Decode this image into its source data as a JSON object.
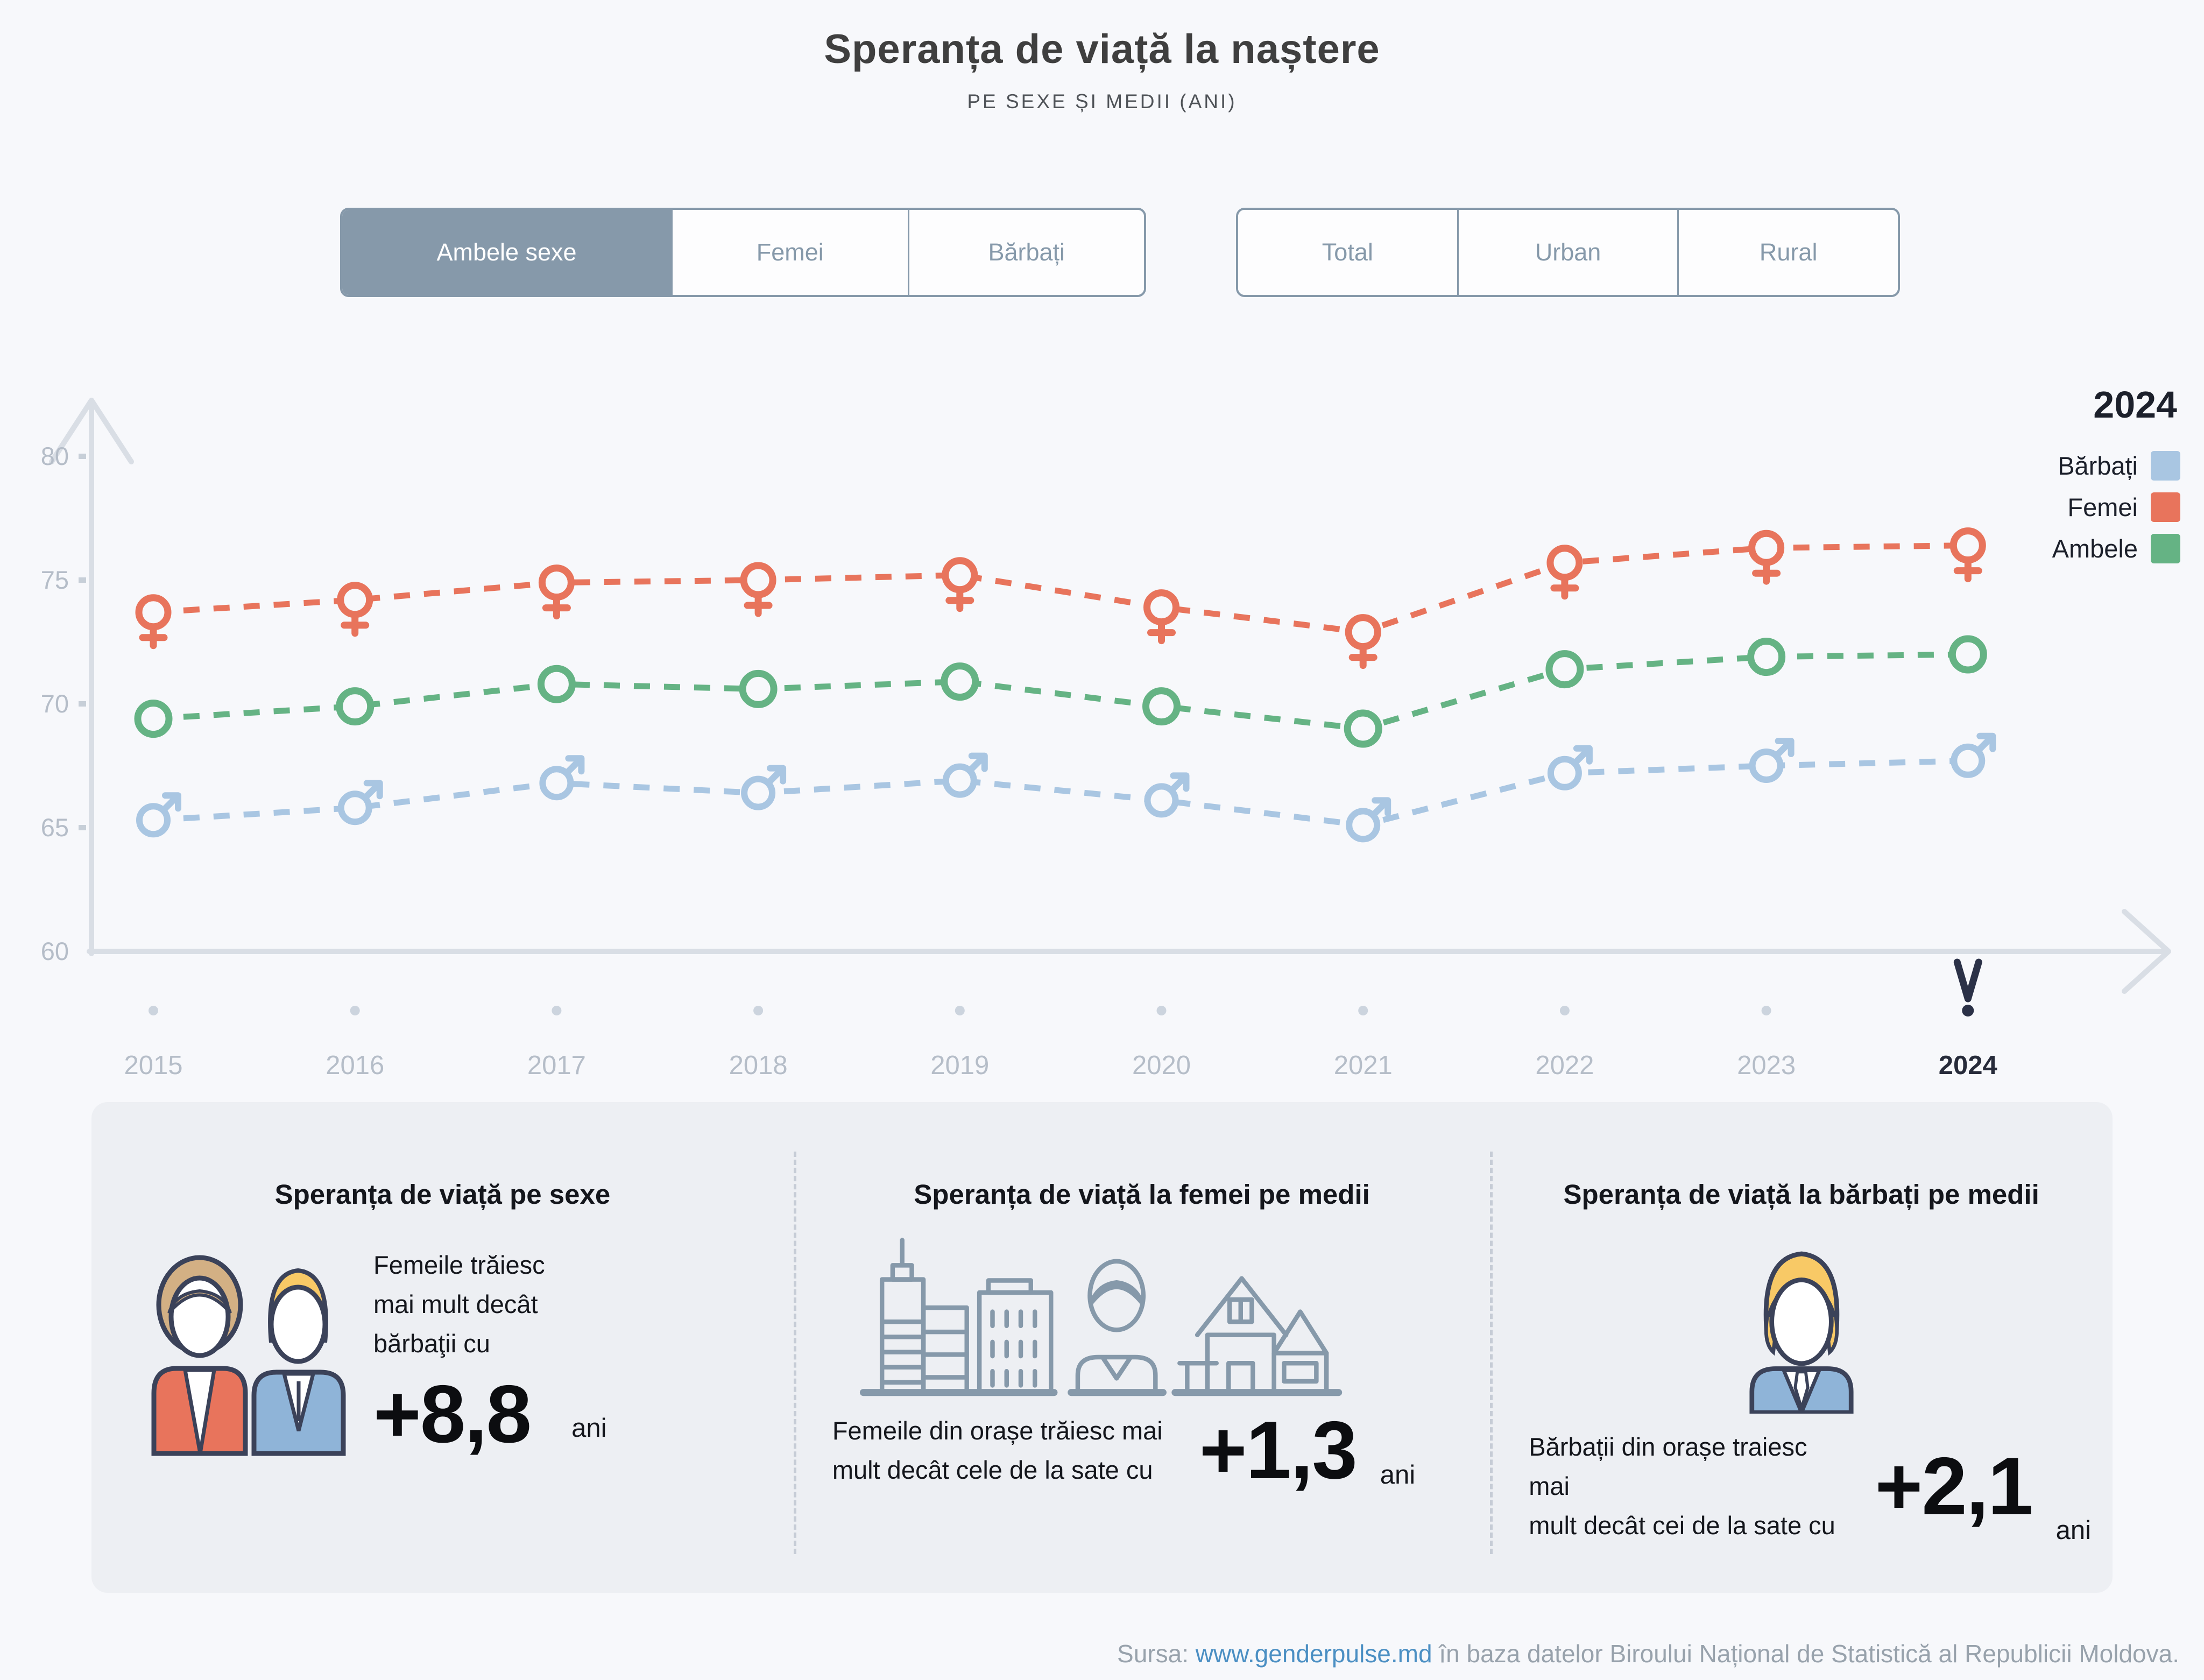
{
  "header": {
    "title": "Speranța de viață la naștere",
    "subtitle": "PE SEXE ȘI MEDII (ANI)"
  },
  "filters": {
    "sex": {
      "options": [
        {
          "label": "Ambele sexe",
          "active": true
        },
        {
          "label": "Femei",
          "active": false
        },
        {
          "label": "Bărbați",
          "active": false
        }
      ]
    },
    "medium": {
      "options": [
        {
          "label": "Total",
          "active": false
        },
        {
          "label": "Urban",
          "active": false
        },
        {
          "label": "Rural",
          "active": false
        }
      ]
    }
  },
  "legend": {
    "year": "2024",
    "items": [
      {
        "label": "Bărbați",
        "color": "#a9c6e2"
      },
      {
        "label": "Femei",
        "color": "#e8745c"
      },
      {
        "label": "Ambele",
        "color": "#65b384"
      }
    ]
  },
  "chart_data": {
    "type": "line",
    "title": "Speranța de viață la naștere, pe sexe și medii (ani)",
    "x": [
      2015,
      2016,
      2017,
      2018,
      2019,
      2020,
      2021,
      2022,
      2023,
      2024
    ],
    "series": [
      {
        "name": "Femei",
        "color": "#e8745c",
        "marker": "female",
        "values": [
          73.7,
          74.2,
          74.9,
          75.0,
          75.2,
          73.9,
          72.9,
          75.7,
          76.3,
          76.4
        ]
      },
      {
        "name": "Ambele",
        "color": "#65b384",
        "marker": "circle",
        "values": [
          69.4,
          69.9,
          70.8,
          70.6,
          70.9,
          69.9,
          69.0,
          71.4,
          71.9,
          72.0
        ]
      },
      {
        "name": "Bărbați",
        "color": "#a9c6e2",
        "marker": "male",
        "values": [
          65.3,
          65.8,
          66.8,
          66.4,
          66.9,
          66.1,
          65.1,
          67.2,
          67.5,
          67.7
        ]
      }
    ],
    "ylim": [
      60,
      80
    ],
    "yticks": [
      60,
      65,
      70,
      75,
      80
    ],
    "selected_x": 2024,
    "grid": false,
    "line_style": "dashed",
    "legend_position": "top-right"
  },
  "cards": [
    {
      "title": "Speranța de viață pe sexe",
      "icon": "woman-man-icon",
      "lines": [
        "Femeile trăiesc",
        "mai mult decât",
        "bărbaţii cu"
      ],
      "value": "+8,8",
      "unit": "ani"
    },
    {
      "title": "Speranța de viață la femei pe medii",
      "icon": "city-woman-house-icon",
      "lines": [
        "Femeile din orașe trăiesc mai",
        "mult decât cele de la sate cu"
      ],
      "value": "+1,3",
      "unit": "ani"
    },
    {
      "title": "Speranța de viață la bărbați pe medii",
      "icon": "man-icon",
      "lines": [
        "Bărbații din orașe traiesc mai",
        "mult decât cei de la sate cu"
      ],
      "value": "+2,1",
      "unit": "ani"
    }
  ],
  "footer": {
    "prefix": "Sursa: ",
    "link": "www.genderpulse.md",
    "suffix": " în baza datelor Biroului Național de Statistică al Republicii Moldova."
  }
}
